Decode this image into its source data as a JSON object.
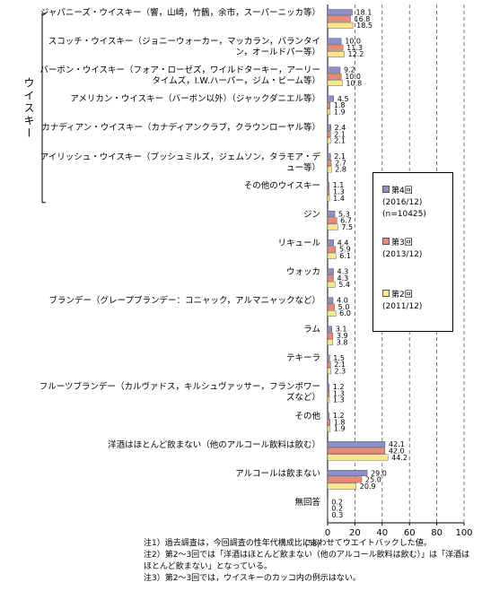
{
  "chart_data": {
    "type": "bar",
    "orientation": "horizontal",
    "categories": [
      "ジャパニーズ・ウイスキー（響，山崎，竹鶴，余市，スーパーニッカ等）",
      "スコッチ・ウイスキー（ジョニーウォーカー，マッカラン，バランタイン，オールドパー等）",
      "バーボン・ウイスキー（フォア・ローゼズ，ワイルドターキー，アーリータイムズ，I.W.ハーパー，ジム・ビーム等）",
      "アメリカン・ウイスキー（バーボン以外）（ジャックダニエル等）",
      "カナディアン・ウイスキー（カナディアンクラブ，クラウンローヤル等）",
      "アイリッシュ・ウイスキー（ブッシュミルズ，ジェムソン，タラモア・デュー等）",
      "その他のウイスキー",
      "ジン",
      "リキュール",
      "ウォッカ",
      "ブランデー（グレープブランデー：コニャック，アルマニャックなど）",
      "ラム",
      "テキーラ",
      "フルーツブランデー（カルヴァドス，キルシュヴァッサー，フランボワーズなど）",
      "その他",
      "洋酒はほとんど飲まない（他のアルコール飲料は飲む）",
      "アルコールは飲まない",
      "無回答"
    ],
    "groups": [
      {
        "label": "ウイスキー",
        "first": 0,
        "last": 6
      }
    ],
    "series": [
      {
        "name": "第4回",
        "period": "(2016/12)",
        "n": "(n=10425)",
        "color": "#8e8fc8",
        "values": [
          18.1,
          10.0,
          9.2,
          4.5,
          2.4,
          2.1,
          1.1,
          5.3,
          4.4,
          4.3,
          4.0,
          3.1,
          1.5,
          1.2,
          1.2,
          42.1,
          29.0,
          0.2
        ],
        "value_labels": [
          "18.1",
          "10.0",
          "9.2",
          "4.5",
          "2.4",
          "2.1",
          "1.1",
          "5.3",
          "4.4",
          "4.3",
          "4.0",
          "3.1",
          "1.5",
          "1.2",
          "1.2",
          "42.1",
          "29.0",
          "0.2"
        ]
      },
      {
        "name": "第3回",
        "period": "(2013/12)",
        "color": "#e88a76",
        "values": [
          16.8,
          11.3,
          10.0,
          1.8,
          2.1,
          2.7,
          1.3,
          6.7,
          5.9,
          4.3,
          5.0,
          3.9,
          2.1,
          1.3,
          1.8,
          42.0,
          25.0,
          0.2
        ],
        "value_labels": [
          "16.8",
          "11.3",
          "10.0",
          "1.8",
          "2.1",
          "2.7",
          "1.3",
          "6.7",
          "5.9",
          "4.3",
          "5.0",
          "3.9",
          "2.1",
          "1.3",
          "1.8",
          "42.0",
          "25.0",
          "0.2"
        ]
      },
      {
        "name": "第2回",
        "period": "(2011/12)",
        "color": "#fbe68e",
        "values": [
          18.5,
          12.2,
          10.8,
          1.9,
          2.1,
          2.8,
          1.4,
          7.5,
          6.1,
          5.4,
          6.0,
          3.8,
          2.3,
          1.3,
          1.9,
          44.2,
          20.9,
          0.3
        ],
        "value_labels": [
          "18.5",
          "12.2",
          "10.8",
          "1.9",
          "2.1",
          "2.8",
          "1.4",
          "7.5",
          "6.1",
          "5.4",
          "6.0",
          "3.8",
          "2.3",
          "1.3",
          "1.9",
          "44.2",
          "20.9",
          "0.3"
        ]
      }
    ],
    "xlabel": "(%)",
    "xlim": [
      0,
      100
    ],
    "xticks": [
      0,
      20,
      40,
      60,
      80,
      100
    ],
    "grid": true,
    "legend": "right",
    "notes": [
      "注1）過去調査は，今回調査の性年代構成比にあわせてウエイトバックした値。",
      "注2）第2～3回では「洋酒はほとんど飲まない（他のアルコール飲料は飲む）」は「洋酒はほとんど飲まない」となっている。",
      "注3）第2～3回では，ウイスキーのカッコ内の例示はない。"
    ]
  }
}
